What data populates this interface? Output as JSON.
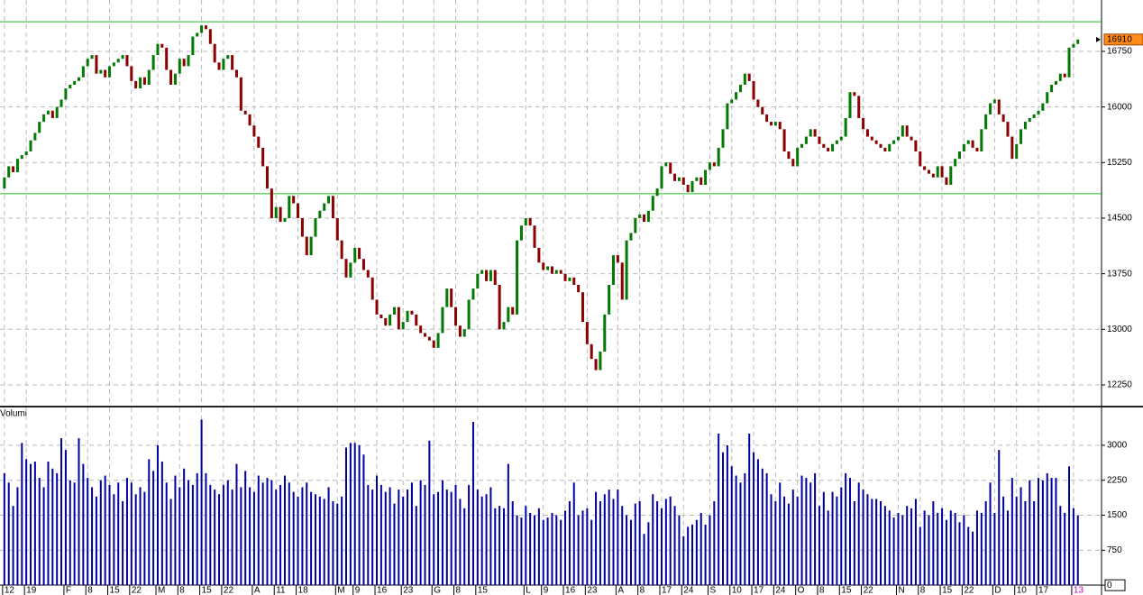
{
  "chart_data": [
    {
      "type": "candlestick",
      "up_color": "#007a00",
      "down_color": "#8b0000",
      "grid": true,
      "hlines": [
        17150,
        14830
      ],
      "hline_color": "#22bb22",
      "last_color": "#ff8c1a",
      "ylim": [
        11970,
        17443
      ],
      "yticks": [
        12250,
        13000,
        13750,
        14500,
        15250,
        16000,
        16750
      ],
      "xlim": [
        -1,
        250.4
      ],
      "xticks": [
        {
          "value": 0,
          "label": "12"
        },
        {
          "value": 5,
          "label": "19"
        },
        {
          "value": 14,
          "label": "F"
        },
        {
          "value": 19,
          "label": "8"
        },
        {
          "value": 24,
          "label": "15"
        },
        {
          "value": 29,
          "label": "22"
        },
        {
          "value": 35,
          "label": "M"
        },
        {
          "value": 40,
          "label": "8"
        },
        {
          "value": 45,
          "label": "15"
        },
        {
          "value": 50,
          "label": "22"
        },
        {
          "value": 57,
          "label": "A"
        },
        {
          "value": 62,
          "label": "11"
        },
        {
          "value": 67,
          "label": "18"
        },
        {
          "value": 76,
          "label": "M"
        },
        {
          "value": 80,
          "label": "9"
        },
        {
          "value": 85,
          "label": "16"
        },
        {
          "value": 91,
          "label": "23"
        },
        {
          "value": 98,
          "label": "G"
        },
        {
          "value": 103,
          "label": "8"
        },
        {
          "value": 108,
          "label": "15"
        },
        {
          "value": 119,
          "label": "L"
        },
        {
          "value": 123,
          "label": "9"
        },
        {
          "value": 128,
          "label": "16"
        },
        {
          "value": 133,
          "label": "23"
        },
        {
          "value": 140,
          "label": "A"
        },
        {
          "value": 145,
          "label": "8"
        },
        {
          "value": 150,
          "label": "17"
        },
        {
          "value": 155,
          "label": "24"
        },
        {
          "value": 161,
          "label": "S"
        },
        {
          "value": 166,
          "label": "10"
        },
        {
          "value": 171,
          "label": "17"
        },
        {
          "value": 176,
          "label": "24"
        },
        {
          "value": 181,
          "label": "O"
        },
        {
          "value": 186,
          "label": "8"
        },
        {
          "value": 191,
          "label": "15"
        },
        {
          "value": 196,
          "label": "22"
        },
        {
          "value": 204,
          "label": "N"
        },
        {
          "value": 209,
          "label": "8"
        },
        {
          "value": 214,
          "label": "15"
        },
        {
          "value": 219,
          "label": "22"
        },
        {
          "value": 226,
          "label": "D"
        },
        {
          "value": 231,
          "label": "10"
        },
        {
          "value": 236,
          "label": "17"
        },
        {
          "value": 244,
          "label": "13"
        }
      ],
      "open": [
        14900,
        15050,
        15200,
        15120,
        15300,
        15350,
        15400,
        15550,
        15650,
        15800,
        15900,
        15950,
        15850,
        16000,
        16100,
        16250,
        16300,
        16350,
        16400,
        16550,
        16650,
        16700,
        16450,
        16500,
        16400,
        16550,
        16600,
        16650,
        16700,
        16550,
        16350,
        16250,
        16400,
        16300,
        16500,
        16700,
        16850,
        16800,
        16500,
        16300,
        16450,
        16650,
        16550,
        16700,
        16950,
        17000,
        17100,
        17050,
        16850,
        16600,
        16500,
        16650,
        16700,
        16500,
        16400,
        15950,
        15900,
        15750,
        15600,
        15450,
        15200,
        14900,
        14500,
        14650,
        14450,
        14500,
        14800,
        14700,
        14500,
        14250,
        14000,
        14250,
        14500,
        14600,
        14700,
        14800,
        14500,
        14200,
        13950,
        13700,
        13900,
        14100,
        13950,
        13800,
        13700,
        13400,
        13200,
        13150,
        13050,
        13200,
        13300,
        13000,
        13100,
        13250,
        13200,
        13050,
        12950,
        12900,
        12850,
        12750,
        12950,
        13300,
        13550,
        13300,
        13050,
        12900,
        13000,
        13400,
        13550,
        13750,
        13800,
        13650,
        13800,
        13600,
        13000,
        13100,
        13300,
        13200,
        14200,
        14400,
        14500,
        14400,
        14100,
        13900,
        13800,
        13850,
        13750,
        13800,
        13750,
        13650,
        13700,
        13600,
        13500,
        13100,
        12800,
        12600,
        12450,
        12700,
        13200,
        13600,
        14000,
        13900,
        13400,
        14200,
        14300,
        14500,
        14550,
        14450,
        14600,
        14800,
        14900,
        15200,
        15250,
        15100,
        15000,
        15050,
        14950,
        14850,
        15000,
        15050,
        14950,
        15150,
        15250,
        15200,
        15450,
        15700,
        16050,
        16100,
        16200,
        16300,
        16450,
        16350,
        16100,
        16000,
        15900,
        15800,
        15750,
        15800,
        15700,
        15400,
        15300,
        15200,
        15450,
        15500,
        15600,
        15700,
        15600,
        15500,
        15450,
        15400,
        15500,
        15550,
        15600,
        15850,
        16200,
        16150,
        15850,
        15700,
        15600,
        15550,
        15500,
        15450,
        15400,
        15500,
        15550,
        15600,
        15750,
        15600,
        15550,
        15400,
        15200,
        15150,
        15100,
        15050,
        15200,
        15050,
        14950,
        15200,
        15300,
        15400,
        15500,
        15550,
        15450,
        15400,
        15700,
        15900,
        16050,
        16100,
        15900,
        15800,
        15600,
        15300,
        15500,
        15700,
        15800,
        15850,
        15900,
        15950,
        16050,
        16200,
        16300,
        16350,
        16450,
        16400,
        16800,
        16850
      ],
      "close": [
        15050,
        15200,
        15120,
        15300,
        15350,
        15400,
        15550,
        15650,
        15800,
        15900,
        15950,
        15850,
        16000,
        16100,
        16250,
        16300,
        16350,
        16400,
        16550,
        16650,
        16700,
        16450,
        16500,
        16400,
        16550,
        16600,
        16650,
        16700,
        16550,
        16350,
        16250,
        16400,
        16300,
        16500,
        16700,
        16850,
        16800,
        16500,
        16300,
        16450,
        16650,
        16550,
        16700,
        16950,
        17000,
        17100,
        17050,
        16850,
        16600,
        16500,
        16650,
        16700,
        16500,
        16400,
        15950,
        15900,
        15750,
        15600,
        15450,
        15200,
        14900,
        14500,
        14650,
        14450,
        14500,
        14800,
        14700,
        14500,
        14250,
        14000,
        14250,
        14500,
        14600,
        14700,
        14800,
        14500,
        14200,
        13950,
        13700,
        13900,
        14100,
        13950,
        13800,
        13700,
        13400,
        13200,
        13150,
        13050,
        13200,
        13300,
        13000,
        13100,
        13250,
        13200,
        13050,
        12950,
        12900,
        12850,
        12750,
        12950,
        13300,
        13550,
        13300,
        13050,
        12900,
        13000,
        13400,
        13550,
        13750,
        13800,
        13650,
        13800,
        13600,
        13000,
        13100,
        13300,
        13200,
        14200,
        14400,
        14500,
        14400,
        14100,
        13900,
        13800,
        13850,
        13750,
        13800,
        13750,
        13650,
        13700,
        13600,
        13500,
        13100,
        12800,
        12600,
        12450,
        12700,
        13200,
        13600,
        14000,
        13900,
        13400,
        14200,
        14300,
        14500,
        14550,
        14450,
        14600,
        14800,
        14900,
        15200,
        15250,
        15100,
        15000,
        15050,
        14950,
        14850,
        15000,
        15050,
        14950,
        15150,
        15250,
        15200,
        15450,
        15700,
        16050,
        16100,
        16200,
        16300,
        16450,
        16350,
        16100,
        16000,
        15900,
        15800,
        15750,
        15800,
        15700,
        15400,
        15300,
        15200,
        15450,
        15500,
        15600,
        15700,
        15600,
        15500,
        15450,
        15400,
        15500,
        15550,
        15600,
        15850,
        16200,
        16150,
        15850,
        15700,
        15600,
        15550,
        15500,
        15450,
        15400,
        15500,
        15550,
        15600,
        15750,
        15600,
        15550,
        15400,
        15200,
        15150,
        15100,
        15050,
        15200,
        15050,
        14950,
        15200,
        15300,
        15400,
        15500,
        15550,
        15450,
        15400,
        15700,
        15900,
        16050,
        16100,
        15900,
        15800,
        15600,
        15300,
        15500,
        15700,
        15800,
        15850,
        15900,
        15950,
        16050,
        16200,
        16300,
        16350,
        16450,
        16400,
        16800,
        16850,
        16910
      ]
    },
    {
      "type": "bar",
      "title": "Volumi",
      "color": "#0000a0",
      "ylim": [
        -210,
        3810
      ],
      "yticks": [
        0,
        750,
        1500,
        2250,
        3000
      ],
      "values": [
        2400,
        2200,
        1700,
        2100,
        3050,
        2700,
        2600,
        2650,
        2300,
        2100,
        2650,
        2500,
        2400,
        3150,
        2900,
        2250,
        2200,
        3150,
        2600,
        2300,
        2100,
        1900,
        2250,
        2350,
        2150,
        1950,
        2200,
        1800,
        2300,
        2200,
        1950,
        2100,
        2000,
        2700,
        2450,
        3000,
        2650,
        2200,
        1850,
        2350,
        2100,
        2500,
        2250,
        2150,
        2400,
        3550,
        2400,
        2150,
        2050,
        1950,
        2150,
        2250,
        2050,
        2600,
        2100,
        2450,
        2100,
        2000,
        2350,
        2200,
        2300,
        2250,
        2050,
        2150,
        2350,
        2200,
        2000,
        1900,
        2100,
        2200,
        2000,
        1950,
        1900,
        1850,
        2100,
        1800,
        1750,
        1900,
        2950,
        3050,
        3050,
        3000,
        2800,
        2150,
        2050,
        2350,
        2150,
        2000,
        2100,
        1750,
        2050,
        1900,
        2050,
        2200,
        1700,
        2250,
        2150,
        3100,
        1950,
        2000,
        2250,
        2050,
        2000,
        2150,
        1850,
        1650,
        2150,
        3500,
        2050,
        1900,
        1950,
        2100,
        1650,
        1700,
        1650,
        2600,
        1800,
        1500,
        1450,
        1700,
        1550,
        1500,
        1650,
        1400,
        1450,
        1550,
        1500,
        1400,
        1600,
        1800,
        2200,
        1500,
        1600,
        1650,
        1400,
        2000,
        1800,
        1950,
        2050,
        1850,
        2050,
        1700,
        1500,
        1400,
        1750,
        1800,
        1100,
        1350,
        1950,
        1800,
        1650,
        1850,
        1900,
        1700,
        1500,
        1050,
        1250,
        1300,
        1400,
        1550,
        1300,
        1500,
        1800,
        3250,
        2850,
        3000,
        2550,
        2350,
        2200,
        2400,
        3250,
        2850,
        2700,
        2500,
        2400,
        1950,
        1800,
        2200,
        1900,
        1750,
        2050,
        1900,
        2350,
        2300,
        2200,
        2400,
        1700,
        2000,
        1600,
        2000,
        1900,
        2100,
        2400,
        2300,
        1800,
        2200,
        2050,
        1950,
        1850,
        1850,
        1800,
        1700,
        1600,
        1450,
        1550,
        1500,
        1700,
        1650,
        1850,
        1250,
        1600,
        1500,
        1800,
        1550,
        1650,
        1400,
        1600,
        1550,
        1350,
        1500,
        1250,
        1150,
        1600,
        1550,
        1800,
        2200,
        1550,
        2900,
        1900,
        1600,
        2300,
        1900,
        2100,
        1800,
        2250,
        1800,
        2300,
        2250,
        2400,
        2300,
        2300,
        1700,
        1550,
        2550,
        1650,
        1500
      ]
    }
  ]
}
